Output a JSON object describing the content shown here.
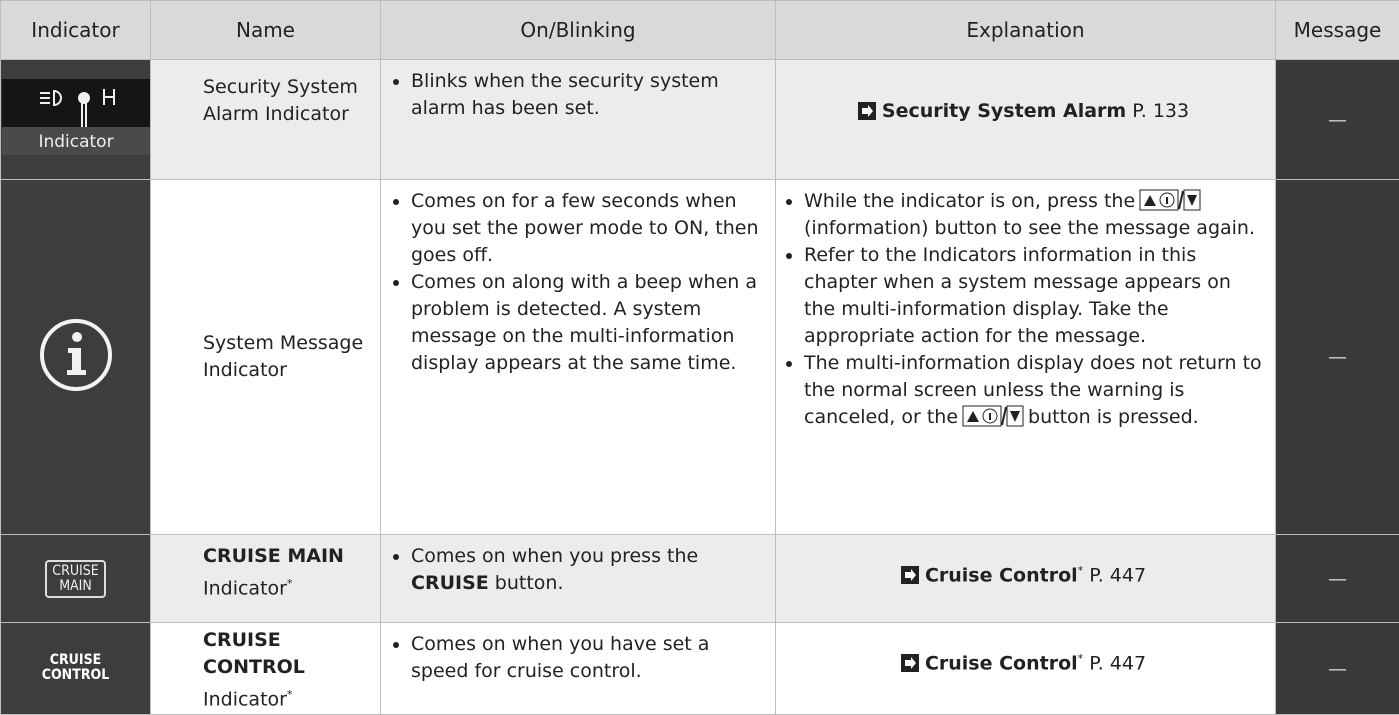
{
  "header": {
    "columns": [
      "Indicator",
      "Name",
      "On/Blinking",
      "Explanation",
      "Message"
    ]
  },
  "rows": [
    {
      "indicator_caption": "Indicator",
      "name": "Security System Alarm Indicator",
      "on_blinking": [
        "Blinks when the security system alarm has been set."
      ],
      "explanation": {
        "title": "Security System Alarm",
        "page": "P. 133"
      },
      "message": "—"
    },
    {
      "name": "System Message Indicator",
      "on_blinking": [
        "Comes on for a few seconds when you set the power mode to ON, then goes off.",
        "Comes on along with a beep when a problem is detected. A system message on the multi-information display appears at the same time."
      ],
      "explanation": [
        {
          "before": "While the indicator is on, press the",
          "after": "(information) button to see the message again."
        },
        "Refer to the Indicators information in this chapter when a system message appears on the multi-information display. Take the appropriate action for the message.",
        {
          "before": "The multi-information display does not return to the normal screen unless the warning is canceled, or the",
          "after": "button is pressed."
        }
      ],
      "message": "—"
    },
    {
      "icon_text": [
        "CRUISE",
        "MAIN"
      ],
      "name": {
        "bold": "CRUISE MAIN",
        "text": "Indicator",
        "mark": "*"
      },
      "on_blinking": [
        {
          "before": "Comes on when you press the",
          "bold": "CRUISE",
          "after": "button."
        }
      ],
      "explanation": {
        "title": "Cruise Control",
        "mark": "*",
        "page": "P. 447"
      },
      "message": "—"
    },
    {
      "icon_text": [
        "CRUISE",
        "CONTROL"
      ],
      "name": {
        "bold": "CRUISE CONTROL",
        "text": "Indicator",
        "mark": "*"
      },
      "on_blinking": [
        "Comes on when you have set a speed for cruise control."
      ],
      "explanation": {
        "title": "Cruise Control",
        "mark": "*",
        "page": "P. 447"
      },
      "message": "—"
    }
  ]
}
